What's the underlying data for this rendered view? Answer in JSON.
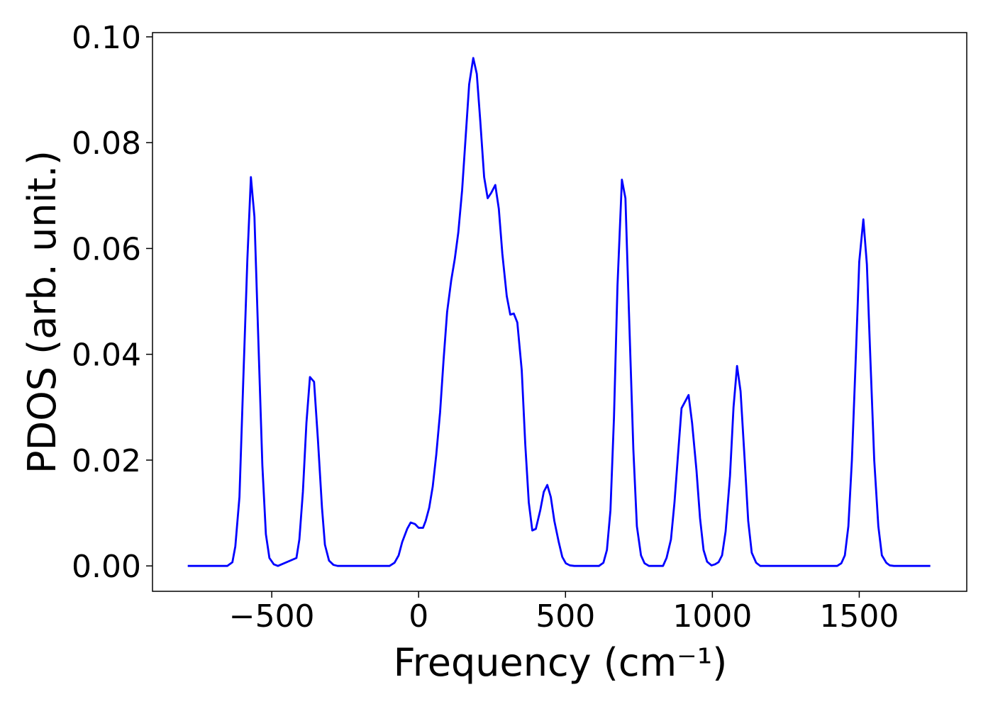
{
  "chart_data": {
    "type": "line",
    "xlabel": "Frequency (cm⁻¹)",
    "ylabel": "PDOS (arb. unit.)",
    "xlim": [
      -906,
      1866
    ],
    "ylim": [
      -0.0048,
      0.1008
    ],
    "xticks": [
      {
        "value": -500,
        "label": "−500"
      },
      0,
      500,
      1000,
      1500
    ],
    "yticks": [
      {
        "value": 0,
        "label": "0.00"
      },
      {
        "value": 0.02,
        "label": "0.02"
      },
      {
        "value": 0.04,
        "label": "0.04"
      },
      {
        "value": 0.06,
        "label": "0.06"
      },
      {
        "value": 0.08,
        "label": "0.08"
      },
      {
        "value": 0.1,
        "label": "0.10"
      }
    ],
    "grid": false,
    "series": [
      {
        "color": "#0000ff",
        "x": [
          -786,
          -651,
          -634,
          -624,
          -610,
          -597,
          -583,
          -571,
          -559,
          -547,
          -532,
          -520,
          -508,
          -493,
          -479,
          -416,
          -406,
          -394,
          -382,
          -370,
          -356,
          -343,
          -329,
          -319,
          -305,
          -290,
          -276,
          -99,
          -82,
          -68,
          -56,
          -39,
          -27,
          -12,
          0,
          15,
          24,
          36,
          48,
          60,
          73,
          85,
          97,
          111,
          123,
          135,
          148,
          160,
          172,
          186,
          198,
          210,
          223,
          235,
          247,
          261,
          273,
          285,
          300,
          312,
          324,
          336,
          351,
          363,
          375,
          387,
          399,
          414,
          426,
          438,
          450,
          462,
          477,
          489,
          501,
          515,
          530,
          614,
          629,
          641,
          653,
          665,
          677,
          692,
          704,
          716,
          731,
          743,
          757,
          769,
          784,
          832,
          844,
          859,
          871,
          883,
          895,
          919,
          931,
          946,
          958,
          970,
          982,
          997,
          1009,
          1021,
          1033,
          1045,
          1060,
          1072,
          1084,
          1096,
          1110,
          1122,
          1134,
          1149,
          1163,
          1425,
          1439,
          1451,
          1463,
          1475,
          1488,
          1500,
          1514,
          1526,
          1538,
          1551,
          1565,
          1577,
          1592,
          1604,
          1618,
          1742
        ],
        "values": [
          0,
          0,
          0.0007,
          0.0037,
          0.013,
          0.035,
          0.058,
          0.0735,
          0.066,
          0.045,
          0.019,
          0.006,
          0.0015,
          0.0003,
          0,
          0.0015,
          0.005,
          0.014,
          0.027,
          0.0357,
          0.0348,
          0.024,
          0.011,
          0.004,
          0.001,
          0.0002,
          0,
          0,
          0.0006,
          0.002,
          0.0045,
          0.007,
          0.0082,
          0.0079,
          0.0072,
          0.0072,
          0.0085,
          0.011,
          0.015,
          0.021,
          0.029,
          0.039,
          0.048,
          0.054,
          0.058,
          0.063,
          0.071,
          0.081,
          0.091,
          0.096,
          0.093,
          0.084,
          0.0735,
          0.0695,
          0.0705,
          0.072,
          0.0675,
          0.059,
          0.051,
          0.0475,
          0.0477,
          0.046,
          0.037,
          0.023,
          0.012,
          0.0067,
          0.007,
          0.0105,
          0.014,
          0.0153,
          0.013,
          0.0085,
          0.0045,
          0.0017,
          0.0005,
          0.0001,
          0,
          0,
          0.0006,
          0.003,
          0.0105,
          0.028,
          0.053,
          0.073,
          0.0695,
          0.048,
          0.022,
          0.0075,
          0.002,
          0.0005,
          0,
          0,
          0.0015,
          0.005,
          0.012,
          0.021,
          0.0298,
          0.0323,
          0.027,
          0.018,
          0.009,
          0.003,
          0.0008,
          0.0001,
          0.0003,
          0.0007,
          0.002,
          0.0065,
          0.017,
          0.03,
          0.0378,
          0.033,
          0.02,
          0.0085,
          0.0025,
          0.0006,
          0,
          0,
          0.0005,
          0.002,
          0.0075,
          0.02,
          0.039,
          0.0575,
          0.0655,
          0.057,
          0.039,
          0.02,
          0.0075,
          0.002,
          0.0006,
          0.0001,
          0,
          0
        ]
      }
    ]
  }
}
